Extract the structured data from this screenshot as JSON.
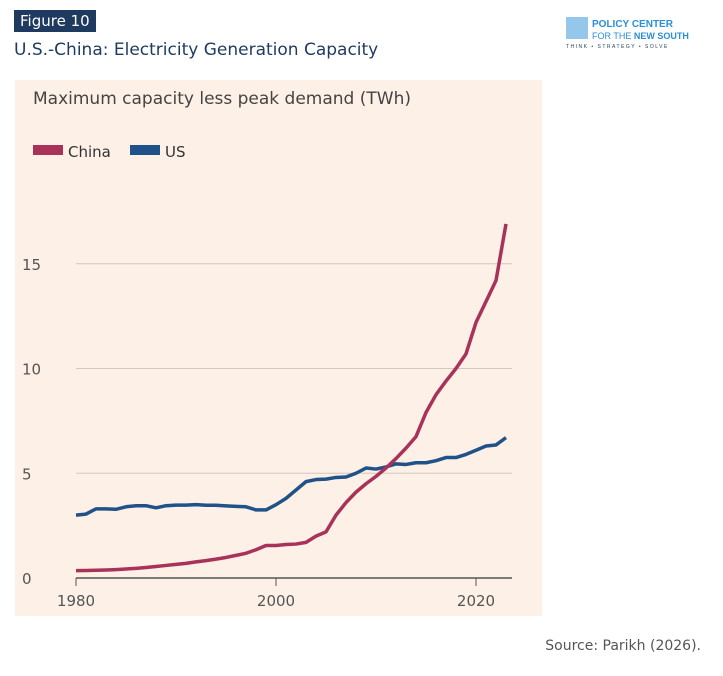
{
  "figure_label": "Figure 10",
  "title": "U.S.-China: Electricity Generation Capacity",
  "logo": {
    "text": "POLICY CENTER FOR THE NEW SOUTH",
    "tagline": "THINK • STRATEGY • SOLVE"
  },
  "source": "Source: Parikh (2026).",
  "colors": {
    "china": "#a8325a",
    "us": "#1f5288",
    "grid": "#d4c8bd"
  },
  "chart_data": {
    "type": "line",
    "title": "Maximum capacity less peak demand (TWh)",
    "xlim": [
      1980,
      2023
    ],
    "ylim": [
      0,
      17
    ],
    "xticks": [
      "1980",
      "2000",
      "2020"
    ],
    "yticks": [
      "0",
      "5",
      "10",
      "15"
    ],
    "grid": "horizontal",
    "legend": "top-left",
    "x": [
      1980,
      1981,
      1982,
      1983,
      1984,
      1985,
      1986,
      1987,
      1988,
      1989,
      1990,
      1991,
      1992,
      1993,
      1994,
      1995,
      1996,
      1997,
      1998,
      1999,
      2000,
      2001,
      2002,
      2003,
      2004,
      2005,
      2006,
      2007,
      2008,
      2009,
      2010,
      2011,
      2012,
      2013,
      2014,
      2015,
      2016,
      2017,
      2018,
      2019,
      2020,
      2021,
      2022,
      2023
    ],
    "series": [
      {
        "name": "China",
        "values": [
          0.35,
          0.36,
          0.37,
          0.38,
          0.4,
          0.43,
          0.46,
          0.5,
          0.55,
          0.6,
          0.65,
          0.7,
          0.77,
          0.83,
          0.9,
          0.98,
          1.08,
          1.18,
          1.35,
          1.55,
          1.55,
          1.6,
          1.62,
          1.7,
          2.0,
          2.2,
          3.0,
          3.6,
          4.1,
          4.5,
          4.85,
          5.25,
          5.7,
          6.2,
          6.75,
          7.9,
          8.75,
          9.4,
          10.0,
          10.7,
          12.2,
          13.2,
          14.2,
          16.9
        ]
      },
      {
        "name": "US",
        "values": [
          3.0,
          3.05,
          3.3,
          3.3,
          3.28,
          3.4,
          3.45,
          3.45,
          3.35,
          3.45,
          3.48,
          3.48,
          3.5,
          3.47,
          3.47,
          3.44,
          3.42,
          3.4,
          3.25,
          3.25,
          3.5,
          3.8,
          4.2,
          4.6,
          4.7,
          4.72,
          4.8,
          4.82,
          5.0,
          5.25,
          5.2,
          5.3,
          5.45,
          5.42,
          5.5,
          5.5,
          5.6,
          5.75,
          5.75,
          5.9,
          6.1,
          6.3,
          6.35,
          6.7
        ]
      }
    ]
  }
}
